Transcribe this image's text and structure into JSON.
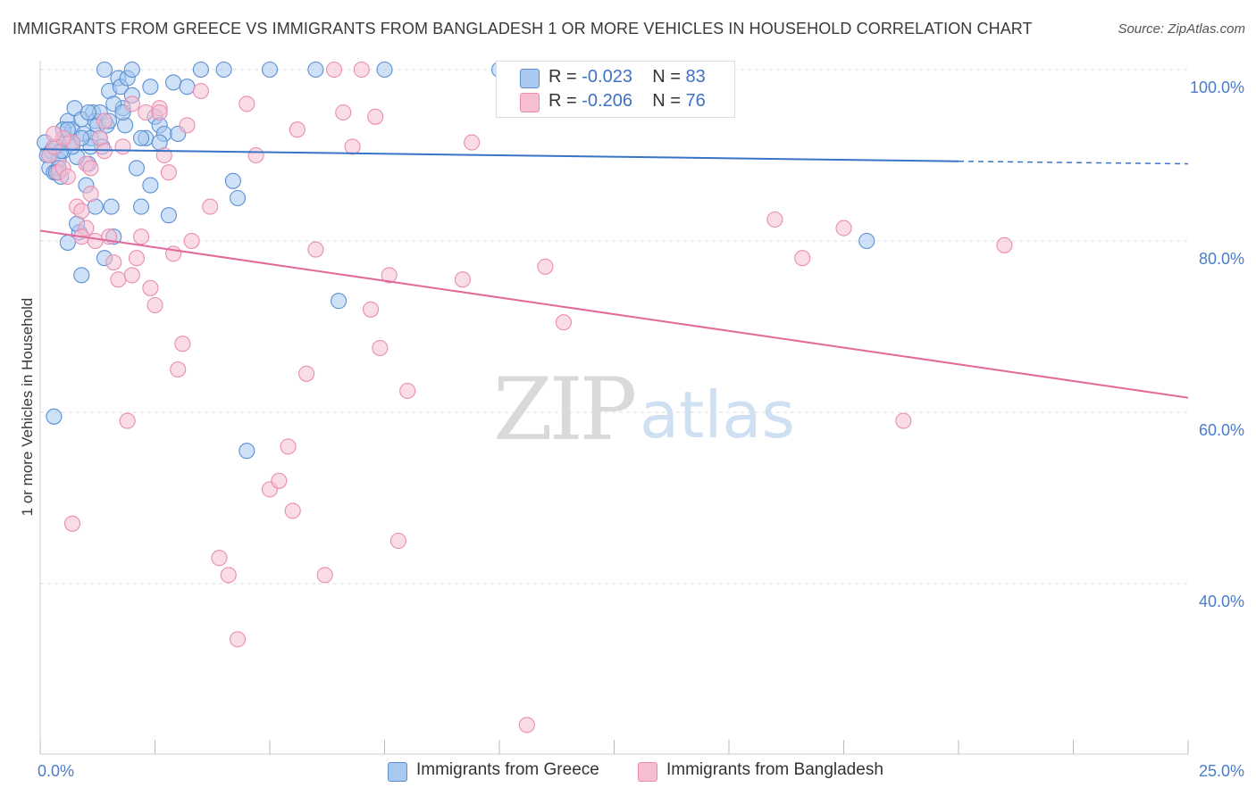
{
  "title": "IMMIGRANTS FROM GREECE VS IMMIGRANTS FROM BANGLADESH 1 OR MORE VEHICLES IN HOUSEHOLD CORRELATION CHART",
  "source": "Source: ZipAtlas.com",
  "watermark": {
    "zip": "ZIP",
    "atlas": "atlas"
  },
  "colors": {
    "greece_fill": "#a8c8ef",
    "greece_stroke": "#5b8fd4",
    "greece_line": "#3874c8",
    "bangladesh_fill": "#f6bfd1",
    "bangladesh_stroke": "#e98db0",
    "bangladesh_line": "#e2699a",
    "tick_text": "#4a7cc9",
    "grid": "#dcdcdc"
  },
  "stats": [
    {
      "r_label": "R = ",
      "r_value": "-0.023",
      "n_label": "N = ",
      "n_value": "83",
      "series": "greece"
    },
    {
      "r_label": "R = ",
      "r_value": "-0.206",
      "n_label": "N = ",
      "n_value": "76",
      "series": "bangladesh"
    }
  ],
  "legend": [
    {
      "label": "Immigrants from Greece",
      "series": "greece"
    },
    {
      "label": "Immigrants from Bangladesh",
      "series": "bangladesh"
    }
  ],
  "chart_data": {
    "type": "scatter",
    "title": "IMMIGRANTS FROM GREECE VS IMMIGRANTS FROM BANGLADESH 1 OR MORE VEHICLES IN HOUSEHOLD CORRELATION CHART",
    "xlabel": "",
    "ylabel": "1 or more Vehicles in Household",
    "xlim": [
      0,
      25
    ],
    "ylim": [
      20,
      102
    ],
    "x_ticks": [
      "0.0%",
      "25.0%"
    ],
    "y_ticks": [
      {
        "value": 100,
        "label": "100.0%"
      },
      {
        "value": 80,
        "label": "80.0%"
      },
      {
        "value": 60,
        "label": "60.0%"
      },
      {
        "value": 40,
        "label": "40.0%"
      }
    ],
    "grid": true,
    "series": [
      {
        "name": "Immigrants from Greece",
        "trend": {
          "x": [
            0,
            20
          ],
          "y": [
            90.7,
            89.3
          ],
          "dashed_to": [
            25,
            89.0
          ]
        },
        "points": [
          [
            0.1,
            91.5
          ],
          [
            0.15,
            90
          ],
          [
            0.2,
            88.5
          ],
          [
            0.25,
            90.5
          ],
          [
            0.3,
            88
          ],
          [
            0.35,
            91
          ],
          [
            0.4,
            89.5
          ],
          [
            0.45,
            87.5
          ],
          [
            0.5,
            90.5
          ],
          [
            0.55,
            92
          ],
          [
            0.6,
            94
          ],
          [
            0.65,
            91.5
          ],
          [
            0.7,
            93
          ],
          [
            0.75,
            95.5
          ],
          [
            0.8,
            89.8
          ],
          [
            0.85,
            81
          ],
          [
            0.9,
            94.2
          ],
          [
            0.95,
            92.5
          ],
          [
            1.0,
            86.5
          ],
          [
            1.05,
            89
          ],
          [
            1.1,
            92
          ],
          [
            1.15,
            95
          ],
          [
            1.2,
            94
          ],
          [
            1.25,
            93.5
          ],
          [
            1.3,
            92
          ],
          [
            1.35,
            91
          ],
          [
            1.4,
            78
          ],
          [
            1.45,
            93.5
          ],
          [
            1.5,
            97.5
          ],
          [
            1.55,
            84
          ],
          [
            1.6,
            80.5
          ],
          [
            1.7,
            99
          ],
          [
            1.75,
            98
          ],
          [
            1.8,
            95.5
          ],
          [
            1.85,
            93.5
          ],
          [
            1.9,
            99
          ],
          [
            2.0,
            97
          ],
          [
            2.1,
            88.5
          ],
          [
            2.2,
            84
          ],
          [
            2.3,
            92
          ],
          [
            2.4,
            86.5
          ],
          [
            2.5,
            94.5
          ],
          [
            2.6,
            93.5
          ],
          [
            2.7,
            92.5
          ],
          [
            2.8,
            83
          ],
          [
            2.9,
            98.5
          ],
          [
            3.0,
            92.5
          ],
          [
            3.5,
            100
          ],
          [
            4.0,
            100
          ],
          [
            4.2,
            87
          ],
          [
            4.3,
            85
          ],
          [
            5.0,
            100
          ],
          [
            6.0,
            100
          ],
          [
            6.5,
            73
          ],
          [
            7.5,
            100
          ],
          [
            10.0,
            100
          ],
          [
            0.6,
            79.8
          ],
          [
            0.9,
            76
          ],
          [
            1.4,
            100
          ],
          [
            0.5,
            93
          ],
          [
            0.3,
            59.5
          ],
          [
            4.5,
            55.5
          ],
          [
            18.0,
            80
          ],
          [
            3.2,
            98
          ],
          [
            1.1,
            91
          ],
          [
            2.0,
            100
          ],
          [
            0.8,
            82
          ],
          [
            1.6,
            96
          ],
          [
            2.4,
            98
          ],
          [
            0.4,
            88.5
          ],
          [
            0.7,
            91
          ],
          [
            1.3,
            95
          ],
          [
            0.2,
            90
          ],
          [
            2.2,
            92
          ],
          [
            1.2,
            84
          ],
          [
            0.9,
            92
          ],
          [
            1.8,
            95
          ],
          [
            1.5,
            94
          ],
          [
            0.6,
            93
          ],
          [
            0.35,
            88
          ],
          [
            1.05,
            95
          ],
          [
            2.6,
            91.5
          ],
          [
            0.45,
            90.5
          ]
        ]
      },
      {
        "name": "Immigrants from Bangladesh",
        "trend": {
          "x": [
            0,
            25
          ],
          "y": [
            81.2,
            61.7
          ]
        },
        "points": [
          [
            0.2,
            90
          ],
          [
            0.3,
            91
          ],
          [
            0.4,
            88
          ],
          [
            0.5,
            88.5
          ],
          [
            0.6,
            87.5
          ],
          [
            0.7,
            91.5
          ],
          [
            0.8,
            84
          ],
          [
            0.9,
            83.5
          ],
          [
            1.0,
            81.5
          ],
          [
            1.1,
            85.5
          ],
          [
            1.2,
            80
          ],
          [
            1.3,
            92
          ],
          [
            1.4,
            90.5
          ],
          [
            1.5,
            80.5
          ],
          [
            1.6,
            77.5
          ],
          [
            1.7,
            75.5
          ],
          [
            1.8,
            91
          ],
          [
            1.9,
            59
          ],
          [
            2.0,
            76
          ],
          [
            2.1,
            78
          ],
          [
            2.2,
            80.5
          ],
          [
            2.3,
            95
          ],
          [
            2.4,
            74.5
          ],
          [
            2.5,
            72.5
          ],
          [
            2.6,
            95.5
          ],
          [
            2.7,
            90
          ],
          [
            2.8,
            88
          ],
          [
            2.9,
            78.5
          ],
          [
            3.0,
            65
          ],
          [
            3.1,
            68
          ],
          [
            3.3,
            80
          ],
          [
            3.5,
            97.5
          ],
          [
            3.7,
            84
          ],
          [
            3.9,
            43
          ],
          [
            4.1,
            41
          ],
          [
            4.3,
            33.5
          ],
          [
            4.5,
            96
          ],
          [
            4.7,
            90
          ],
          [
            5.0,
            51
          ],
          [
            5.2,
            52
          ],
          [
            5.4,
            56
          ],
          [
            5.5,
            48.5
          ],
          [
            5.6,
            93
          ],
          [
            5.8,
            64.5
          ],
          [
            6.0,
            79
          ],
          [
            6.2,
            41
          ],
          [
            6.4,
            100
          ],
          [
            6.6,
            95
          ],
          [
            6.8,
            91
          ],
          [
            7.0,
            100
          ],
          [
            7.2,
            72
          ],
          [
            7.3,
            94.5
          ],
          [
            7.4,
            67.5
          ],
          [
            7.6,
            76
          ],
          [
            7.8,
            45
          ],
          [
            8.0,
            62.5
          ],
          [
            9.2,
            75.5
          ],
          [
            9.4,
            91.5
          ],
          [
            10.6,
            23.5
          ],
          [
            11.0,
            77
          ],
          [
            11.4,
            70.5
          ],
          [
            16.0,
            82.5
          ],
          [
            16.6,
            78
          ],
          [
            17.5,
            81.5
          ],
          [
            18.8,
            59
          ],
          [
            21.0,
            79.5
          ],
          [
            1.0,
            89
          ],
          [
            1.4,
            94
          ],
          [
            0.7,
            47
          ],
          [
            3.2,
            93.5
          ],
          [
            2.0,
            96
          ],
          [
            0.5,
            92
          ],
          [
            2.6,
            95
          ],
          [
            1.1,
            88.5
          ],
          [
            0.9,
            80.5
          ],
          [
            0.3,
            92.5
          ]
        ]
      }
    ]
  }
}
